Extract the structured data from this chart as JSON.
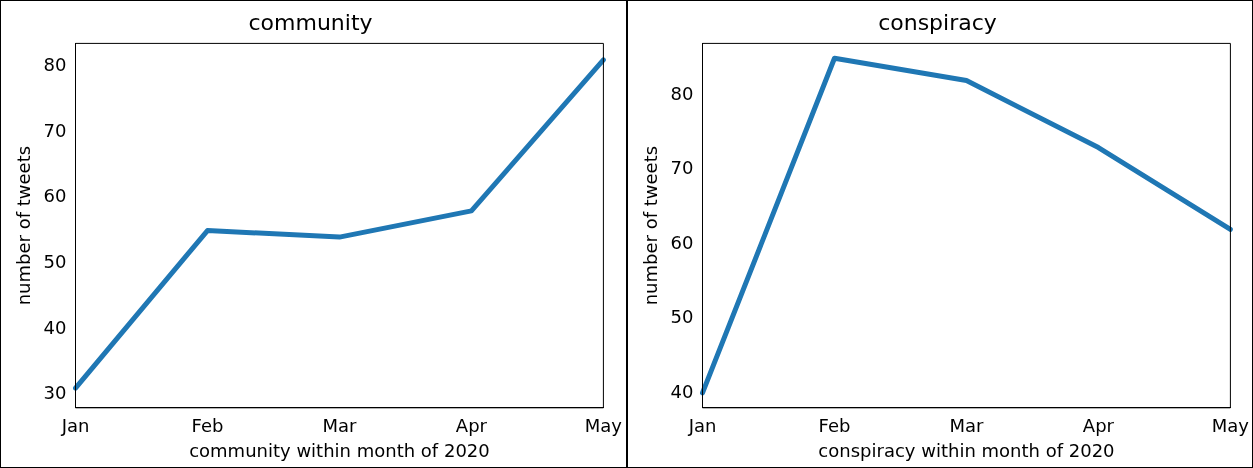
{
  "chart_data": [
    {
      "type": "line",
      "title": "community",
      "xlabel": "community within month of 2020",
      "ylabel": "number of tweets",
      "categories": [
        "Jan",
        "Feb",
        "Mar",
        "Apr",
        "May"
      ],
      "series": [
        {
          "color": "#1f77b4",
          "values": [
            31,
            55,
            54,
            58,
            81
          ]
        }
      ],
      "ylim": [
        28,
        83.5
      ],
      "yticks": [
        30,
        40,
        50,
        60,
        70,
        80
      ],
      "grid": false,
      "legend": false,
      "marker": "none",
      "line_style": "solid"
    },
    {
      "type": "line",
      "title": "conspiracy",
      "xlabel": "conspiracy within month of 2020",
      "ylabel": "number of tweets",
      "categories": [
        "Jan",
        "Feb",
        "Mar",
        "Apr",
        "May"
      ],
      "series": [
        {
          "color": "#1f77b4",
          "values": [
            40,
            85,
            82,
            73,
            62
          ]
        }
      ],
      "ylim": [
        38,
        87
      ],
      "yticks": [
        40,
        50,
        60,
        70,
        80
      ],
      "grid": false,
      "legend": false,
      "marker": "none",
      "line_style": "solid"
    }
  ]
}
